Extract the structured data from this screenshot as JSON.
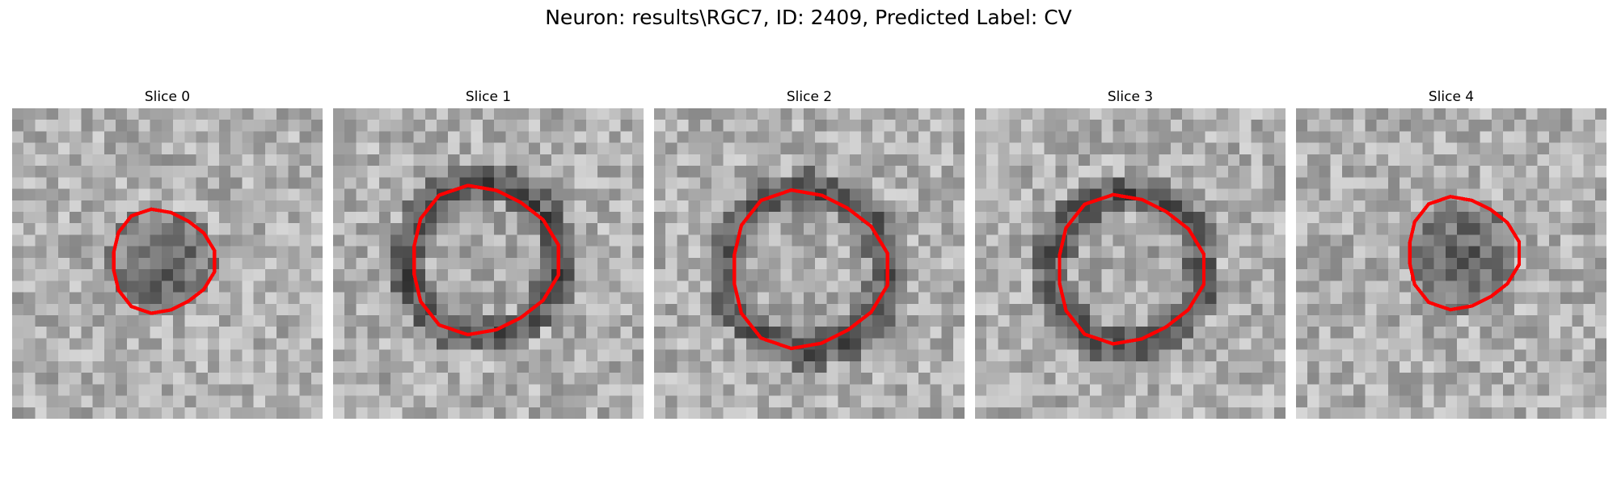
{
  "figure": {
    "title": "Neuron: results\\RGC7, ID: 2409, Predicted Label: CV"
  },
  "panels": [
    {
      "title": "Slice 0",
      "contour_color": "#ff0000"
    },
    {
      "title": "Slice 1",
      "contour_color": "#ff0000"
    },
    {
      "title": "Slice 2",
      "contour_color": "#ff0000"
    },
    {
      "title": "Slice 3",
      "contour_color": "#ff0000"
    },
    {
      "title": "Slice 4",
      "contour_color": "#ff0000"
    }
  ],
  "image": {
    "colormap": "grayscale",
    "grid_size": 27
  }
}
